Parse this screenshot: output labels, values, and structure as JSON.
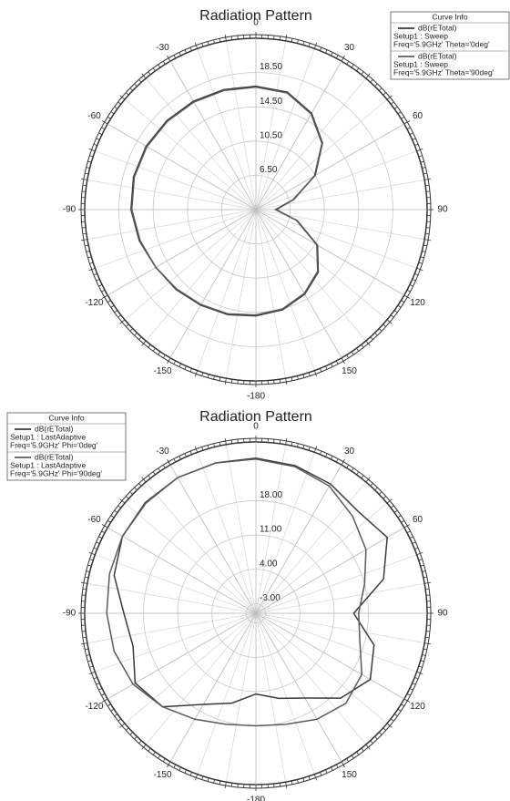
{
  "chart_data": [
    {
      "type": "polar",
      "title": "Radiation Pattern",
      "legend_title": "Curve Info",
      "legend": "upper right",
      "theta": [
        0,
        15,
        30,
        45,
        60,
        75,
        90,
        105,
        120,
        135,
        150,
        165,
        180,
        -165,
        -150,
        -135,
        -120,
        -105,
        -90,
        -75,
        -60,
        -45,
        -30,
        -15
      ],
      "thetaticks": [
        0,
        30,
        60,
        90,
        120,
        150,
        -180,
        -150,
        -120,
        -90,
        -60,
        -30
      ],
      "rlim": [
        2.5,
        22.5
      ],
      "rticks": [
        {
          "value": 6.5,
          "label": "6.50"
        },
        {
          "value": 10.5,
          "label": "10.50"
        },
        {
          "value": 14.5,
          "label": "14.50"
        },
        {
          "value": 18.5,
          "label": "18.50"
        }
      ],
      "series": [
        {
          "name": "dB(rETotal)",
          "setup": "Setup1 : Sweep",
          "params": "Freq='5.9GHz' Theta='0deg'",
          "color": "#3a3a3a",
          "values": [
            16.9,
            16.7,
            15.5,
            13.5,
            10.5,
            7.0,
            4.8,
            7.5,
            10.8,
            12.8,
            13.9,
            14.6,
            14.9,
            15.2,
            15.4,
            15.7,
            16.0,
            16.6,
            17.1,
            17.3,
            17.3,
            17.2,
            17.1,
            17.0
          ]
        },
        {
          "name": "dB(rETotal)",
          "setup": "Setup1 : Sweep",
          "params": "Freq='5.9GHz' Theta='90deg'",
          "color": "#5a5a5a",
          "values": [
            16.8,
            16.6,
            15.4,
            13.4,
            10.4,
            7.1,
            4.9,
            7.4,
            10.7,
            12.7,
            13.8,
            14.5,
            14.8,
            15.1,
            15.3,
            15.6,
            16.0,
            16.5,
            17.0,
            17.2,
            17.2,
            17.1,
            17.0,
            16.9
          ]
        }
      ]
    },
    {
      "type": "polar",
      "title": "Radiation Pattern",
      "legend_title": "Curve Info",
      "legend": "upper left",
      "theta": [
        0,
        15,
        30,
        45,
        60,
        75,
        90,
        105,
        120,
        135,
        150,
        165,
        180,
        -165,
        -150,
        -135,
        -120,
        -105,
        -90,
        -75,
        -60,
        -45,
        -30,
        -15
      ],
      "thetaticks": [
        0,
        30,
        60,
        90,
        120,
        150,
        -180,
        -150,
        -120,
        -90,
        -60,
        -30
      ],
      "rlim": [
        -5,
        30
      ],
      "rticks": [
        {
          "value": -3,
          "label": "-3.00"
        },
        {
          "value": 4,
          "label": "4.00"
        },
        {
          "value": 11,
          "label": "11.00"
        },
        {
          "value": 18,
          "label": "18.00"
        }
      ],
      "series": [
        {
          "name": "dB(rETotal)",
          "setup": "Setup1 : LastAdaptive",
          "params": "Freq='5.9GHz' Phi='0deg'",
          "color": "#3a3a3a",
          "values": [
            26.7,
            26.2,
            25.5,
            24.5,
            26.0,
            22.0,
            15.0,
            20.0,
            22.0,
            19.5,
            15.0,
            13.0,
            11.5,
            14.0,
            16.5,
            22.0,
            23.5,
            21.0,
            22.0,
            25.0,
            26.5,
            27.0,
            27.0,
            26.8
          ]
        },
        {
          "name": "dB(rETotal)",
          "setup": "Setup1 : LastAdaptive",
          "params": "Freq='5.9GHz' Phi='90deg'",
          "color": "#5a5a5a",
          "values": [
            26.5,
            26.0,
            25.0,
            23.0,
            21.0,
            18.0,
            16.0,
            17.0,
            20.0,
            21.0,
            20.0,
            18.5,
            18.0,
            18.5,
            20.0,
            22.0,
            24.0,
            25.0,
            25.5,
            26.0,
            26.5,
            26.8,
            27.0,
            26.8
          ]
        }
      ]
    }
  ]
}
